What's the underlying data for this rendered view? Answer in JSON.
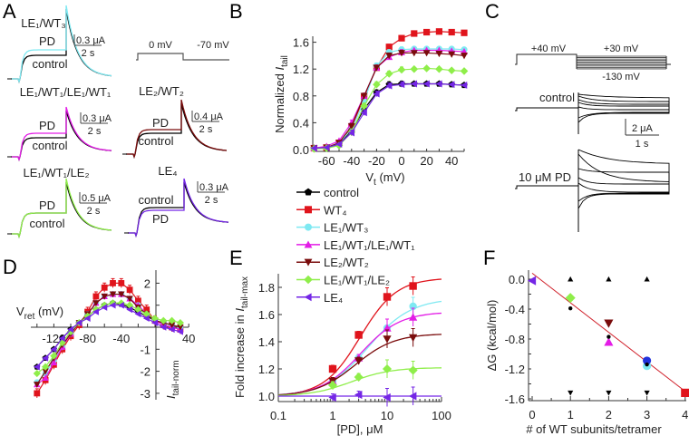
{
  "panel_letters": [
    "A",
    "B",
    "C",
    "D",
    "E",
    "F"
  ],
  "colors": {
    "control": "#000000",
    "WT4": "#e0141c",
    "LE1_WT3": "#7ee9f2",
    "LE1_WT1_LE1_WT1": "#e31ce6",
    "LE2_WT2": "#7a0c0c",
    "LE1_WT1_LE2": "#8fee4a",
    "LE4": "#7426e6"
  },
  "panel_a": {
    "traces": [
      {
        "title": "LE₁/WT₃",
        "pd": "PD",
        "control": "control",
        "scale_current": "0.3 μA",
        "scale_time": "2 s",
        "color_key": "LE1_WT3"
      },
      {
        "title": "LE₁/WT₁/LE₁/WT₁",
        "pd": "PD",
        "control": "control",
        "scale_current": "0.3 μA",
        "scale_time": "2 s",
        "color_key": "LE1_WT1_LE1_WT1"
      },
      {
        "title": "LE₁/WT₁/LE₂",
        "pd": "PD",
        "control": "control",
        "scale_current": "0.5 μA",
        "scale_time": "2 s",
        "color_key": "LE1_WT1_LE2"
      },
      {
        "title": "LE₂/WT₂",
        "pd": "PD",
        "control": "control",
        "scale_current": "0.4 μA",
        "scale_time": "2 s",
        "color_key": "LE2_WT2"
      },
      {
        "title": "LE₄",
        "pd": "PD",
        "control": "control",
        "scale_current": "0.3 μA",
        "scale_time": "2 s",
        "color_key": "LE4"
      }
    ],
    "protocol": {
      "step": "0 mV",
      "hold": "-70 mV"
    }
  },
  "panel_c": {
    "protocol": {
      "pre": "+40 mV",
      "top": "+30 mV",
      "bottom": "-130 mV"
    },
    "control_label": "control",
    "pd_label": "10 μM PD",
    "scale_current": "2 μA",
    "scale_time": "1 s"
  },
  "legend": [
    {
      "key": "control",
      "label": "control",
      "marker": "pentagon"
    },
    {
      "key": "WT4",
      "label": "WT₄",
      "marker": "square"
    },
    {
      "key": "LE1_WT3",
      "label": "LE₁/WT₃",
      "marker": "circle"
    },
    {
      "key": "LE1_WT1_LE1_WT1",
      "label": "LE₁/WT₁/LE₁/WT₁",
      "marker": "triangle-up"
    },
    {
      "key": "LE2_WT2",
      "label": "LE₂/WT₂",
      "marker": "triangle-down"
    },
    {
      "key": "LE1_WT1_LE2",
      "label": "LE₁/WT₁/LE₂",
      "marker": "diamond"
    },
    {
      "key": "LE4",
      "label": "LE₄",
      "marker": "triangle-left"
    }
  ],
  "chart_data": [
    {
      "panel": "B",
      "type": "line",
      "ylabel": {
        "text": "Normalized ",
        "italic": "I",
        "sub": "tail"
      },
      "xlabel": {
        "text": "V",
        "sub": "t",
        "rest": " (mV)"
      },
      "xlim": [
        -70,
        50
      ],
      "ylim": [
        0,
        1.75
      ],
      "xticks": [
        "-60",
        "-40",
        "-20",
        "0",
        "20",
        "40"
      ],
      "yticks": [
        "0.0",
        "0.4",
        "0.8",
        "1.2",
        "1.6"
      ],
      "x": [
        -70,
        -60,
        -50,
        -40,
        -30,
        -20,
        -10,
        0,
        10,
        20,
        30,
        40,
        50
      ],
      "series": [
        {
          "key": "control",
          "values": [
            0.02,
            0.02,
            0.08,
            0.28,
            0.6,
            0.85,
            0.97,
            0.98,
            0.98,
            0.98,
            0.98,
            0.97,
            0.96
          ]
        },
        {
          "key": "WT4",
          "values": [
            0.02,
            0.03,
            0.1,
            0.33,
            0.78,
            1.22,
            1.53,
            1.66,
            1.73,
            1.75,
            1.76,
            1.75,
            1.74
          ]
        },
        {
          "key": "LE1_WT3",
          "values": [
            0.02,
            0.03,
            0.1,
            0.3,
            0.72,
            1.25,
            1.45,
            1.49,
            1.5,
            1.5,
            1.5,
            1.5,
            1.49
          ]
        },
        {
          "key": "LE1_WT1_LE1_WT1",
          "values": [
            0.02,
            0.05,
            0.13,
            0.4,
            0.8,
            1.22,
            1.38,
            1.45,
            1.48,
            1.48,
            1.48,
            1.47,
            1.46
          ]
        },
        {
          "key": "LE2_WT2",
          "values": [
            0.02,
            0.03,
            0.1,
            0.35,
            0.8,
            1.22,
            1.4,
            1.44,
            1.44,
            1.44,
            1.43,
            1.42,
            1.4
          ]
        },
        {
          "key": "LE1_WT1_LE2",
          "values": [
            0.01,
            0.02,
            0.06,
            0.26,
            0.65,
            0.97,
            1.13,
            1.19,
            1.2,
            1.21,
            1.2,
            1.18,
            1.17
          ]
        },
        {
          "key": "LE4",
          "values": [
            0.02,
            0.03,
            0.08,
            0.25,
            0.55,
            0.83,
            0.95,
            0.97,
            0.98,
            0.98,
            0.98,
            0.97,
            0.96
          ]
        }
      ]
    },
    {
      "panel": "D",
      "type": "line",
      "xlabel": {
        "text": "V",
        "sub": "ret",
        "rest": " (mV)"
      },
      "ylabel": {
        "italic": "I",
        "sub": "tail-norm"
      },
      "xlim": [
        -140,
        40
      ],
      "ylim": [
        -3.2,
        2.4
      ],
      "xticks": [
        "-120",
        "-80",
        "-40",
        "40"
      ],
      "yticks": [
        "2",
        "-1",
        "-2",
        "-3"
      ],
      "x": [
        -140,
        -130,
        -120,
        -110,
        -100,
        -90,
        -80,
        -70,
        -60,
        -50,
        -40,
        -30,
        -20,
        -10,
        0,
        10,
        20,
        30
      ],
      "series": [
        {
          "key": "control",
          "values": [
            -1.8,
            -1.4,
            -1.0,
            -0.5,
            -0.1,
            0.2,
            0.5,
            0.8,
            1.0,
            1.1,
            1.05,
            0.9,
            0.7,
            0.5,
            0.3,
            0.2,
            0.1,
            0.0
          ]
        },
        {
          "key": "WT4",
          "values": [
            -3.0,
            -2.4,
            -1.7,
            -1.0,
            -0.4,
            0.1,
            0.7,
            1.4,
            1.8,
            2.0,
            2.0,
            1.7,
            1.2,
            0.8,
            0.3,
            0.1,
            0.0,
            -0.1
          ]
        },
        {
          "key": "LE1_WT3",
          "values": [
            -2.5,
            -2.1,
            -1.5,
            -0.9,
            -0.3,
            0.2,
            0.6,
            1.1,
            1.4,
            1.5,
            1.5,
            1.3,
            1.0,
            0.6,
            0.3,
            0.2,
            0.1,
            0.0
          ]
        },
        {
          "key": "LE1_WT1_LE1_WT1",
          "values": [
            -2.6,
            -2.3,
            -1.6,
            -0.9,
            -0.3,
            0.2,
            0.6,
            1.1,
            1.4,
            1.5,
            1.5,
            1.3,
            1.0,
            0.6,
            0.3,
            0.1,
            0.0,
            -0.1
          ]
        },
        {
          "key": "LE2_WT2",
          "values": [
            -2.6,
            -2.0,
            -1.4,
            -0.8,
            -0.3,
            0.2,
            0.6,
            1.1,
            1.4,
            1.5,
            1.5,
            1.3,
            0.9,
            0.6,
            0.3,
            0.2,
            0.1,
            0.0
          ]
        },
        {
          "key": "LE1_WT1_LE2",
          "values": [
            -2.1,
            -1.8,
            -1.3,
            -0.7,
            -0.2,
            0.2,
            0.5,
            0.8,
            1.0,
            1.1,
            1.1,
            1.0,
            0.8,
            0.6,
            0.4,
            0.3,
            0.3,
            0.2
          ]
        },
        {
          "key": "LE4",
          "values": [
            -1.8,
            -1.4,
            -1.0,
            -0.5,
            -0.1,
            0.2,
            0.4,
            0.7,
            0.9,
            1.0,
            1.0,
            0.8,
            0.6,
            0.4,
            0.2,
            0.0,
            -0.1,
            -0.2
          ]
        }
      ]
    },
    {
      "panel": "E",
      "type": "scatter",
      "ylabel": {
        "text": "Fold increase in ",
        "italic": "I",
        "sub": "tail-max"
      },
      "xlabel": {
        "text": "[PD], μM"
      },
      "xscale": "log",
      "xlim": [
        0.1,
        100
      ],
      "ylim": [
        0.96,
        1.9
      ],
      "xticks": [
        "0.1",
        "1",
        "10",
        "100"
      ],
      "yticks": [
        "1.0",
        "1.2",
        "1.4",
        "1.6",
        "1.8"
      ],
      "x": [
        1,
        3,
        10,
        30
      ],
      "series": [
        {
          "key": "WT4",
          "values": [
            1.2,
            1.45,
            1.73,
            1.81
          ]
        },
        {
          "key": "LE1_WT3",
          "values": [
            1.11,
            1.28,
            1.5,
            1.66
          ]
        },
        {
          "key": "LE1_WT1_LE1_WT1",
          "values": [
            1.11,
            1.28,
            1.5,
            1.58
          ]
        },
        {
          "key": "LE2_WT2",
          "values": [
            1.11,
            1.26,
            1.42,
            1.43
          ]
        },
        {
          "key": "LE1_WT1_LE2",
          "values": [
            1.08,
            1.14,
            1.2,
            1.19
          ]
        },
        {
          "key": "LE4",
          "values": [
            0.99,
            1.01,
            0.99,
            1.0
          ]
        }
      ]
    },
    {
      "panel": "F",
      "type": "scatter",
      "ylabel": {
        "text": "ΔG (kcal/mol)"
      },
      "xlabel": {
        "text": "# of WT subunits/tetramer"
      },
      "xlim": [
        -0.1,
        4
      ],
      "ylim": [
        -1.6,
        0.12
      ],
      "xticks": [
        "0",
        "1",
        "2",
        "3",
        "4"
      ],
      "yticks": [
        "0.0",
        "-0.4",
        "-0.8",
        "-1.2",
        "-1.6"
      ],
      "points": [
        {
          "key": "LE4",
          "x": 0,
          "y": -0.02
        },
        {
          "key": "LE1_WT1_LE2",
          "x": 1,
          "y": -0.25
        },
        {
          "key": "LE2_WT2",
          "x": 2,
          "y": -0.59
        },
        {
          "key": "LE1_WT1_LE1_WT1",
          "x": 2,
          "y": -0.84
        },
        {
          "key": "LE1_WT3",
          "x": 3,
          "y": -1.16
        },
        {
          "key": "LE4",
          "x": 3,
          "y": -1.09
        },
        {
          "key": "WT4",
          "x": 4,
          "y": -1.52
        }
      ],
      "predicted": [
        {
          "x": 1,
          "y": -0.39
        },
        {
          "x": 2,
          "y": -0.77
        },
        {
          "x": 3,
          "y": -1.14
        }
      ],
      "bounds_upper": [
        {
          "x": 1,
          "y": 0
        },
        {
          "x": 2,
          "y": 0
        },
        {
          "x": 3,
          "y": 0
        }
      ],
      "bounds_lower": [
        {
          "x": 1,
          "y": -1.52
        },
        {
          "x": 2,
          "y": -1.52
        },
        {
          "x": 3,
          "y": -1.52
        }
      ],
      "fit_line": [
        {
          "x": 0,
          "y": 0.08
        },
        {
          "x": 4,
          "y": -1.5
        }
      ],
      "fit_color": "#d0202a"
    }
  ]
}
